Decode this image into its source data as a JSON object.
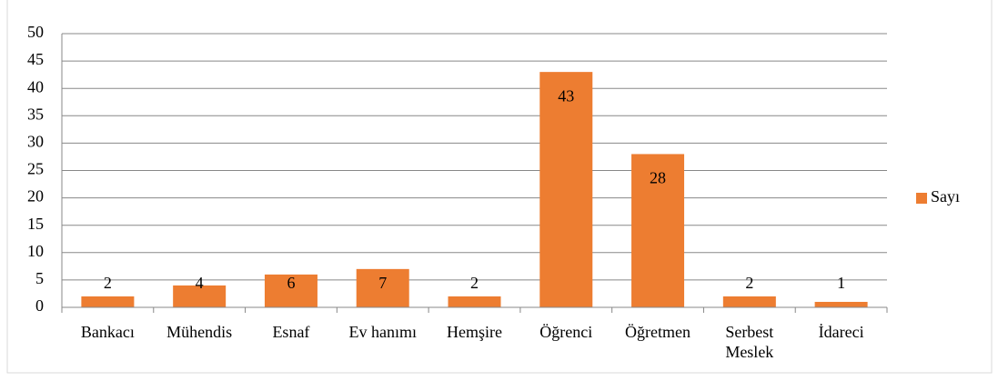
{
  "chart_data": {
    "type": "bar",
    "categories": [
      "Bankacı",
      "Mühendis",
      "Esnaf",
      "Ev hanımı",
      "Hemşire",
      "Öğrenci",
      "Öğretmen",
      "Serbest Meslek",
      "İdareci"
    ],
    "series": [
      {
        "name": "Sayı",
        "color": "#ed7d31",
        "values": [
          2,
          4,
          6,
          7,
          2,
          43,
          28,
          2,
          1
        ]
      }
    ],
    "ylim": [
      0,
      50
    ],
    "yticks": [
      0,
      5,
      10,
      15,
      20,
      25,
      30,
      35,
      40,
      45,
      50
    ],
    "grid": true,
    "legend": "right"
  }
}
